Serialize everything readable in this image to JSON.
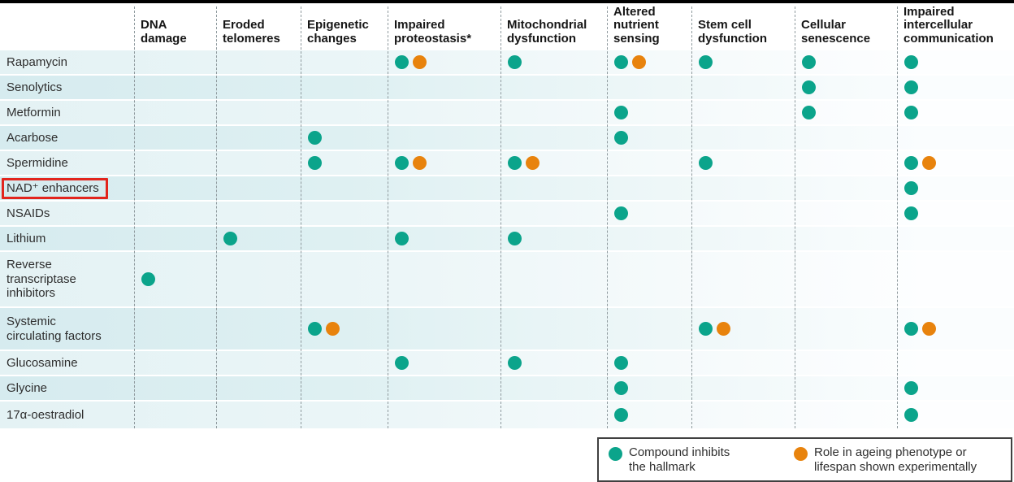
{
  "figure": {
    "colors": {
      "teal": "#0ba48b",
      "orange": "#e8830d",
      "highlight": "#e2251d"
    },
    "legend": {
      "items": [
        {
          "color": "teal",
          "label": "Compound inhibits the hallmark"
        },
        {
          "color": "orange",
          "label": "Role in ageing phenotype or lifespan shown experimentally"
        }
      ]
    }
  },
  "chart_data": {
    "type": "table",
    "columns": [
      "DNA damage",
      "Eroded telomeres",
      "Epigenetic changes",
      "Impaired proteostasis*",
      "Mitochondrial dysfunction",
      "Altered nutrient sensing",
      "Stem cell dysfunction",
      "Cellular senescence",
      "Impaired intercellular communication"
    ],
    "mark_meanings": {
      "teal": "Compound inhibits the hallmark",
      "orange": "Role in ageing phenotype or lifespan shown experimentally"
    },
    "rows": [
      {
        "label": "Rapamycin",
        "highlighted": false,
        "cells": [
          null,
          null,
          null,
          [
            "teal",
            "orange"
          ],
          [
            "teal"
          ],
          [
            "teal",
            "orange"
          ],
          [
            "teal"
          ],
          [
            "teal"
          ],
          [
            "teal"
          ]
        ]
      },
      {
        "label": "Senolytics",
        "highlighted": false,
        "cells": [
          null,
          null,
          null,
          null,
          null,
          null,
          null,
          [
            "teal"
          ],
          [
            "teal"
          ]
        ]
      },
      {
        "label": "Metformin",
        "highlighted": false,
        "cells": [
          null,
          null,
          null,
          null,
          null,
          [
            "teal"
          ],
          null,
          [
            "teal"
          ],
          [
            "teal"
          ]
        ]
      },
      {
        "label": "Acarbose",
        "highlighted": false,
        "cells": [
          null,
          null,
          [
            "teal"
          ],
          null,
          null,
          [
            "teal"
          ],
          null,
          null,
          null
        ]
      },
      {
        "label": "Spermidine",
        "highlighted": false,
        "cells": [
          null,
          null,
          [
            "teal"
          ],
          [
            "teal",
            "orange"
          ],
          [
            "teal",
            "orange"
          ],
          null,
          [
            "teal"
          ],
          null,
          [
            "teal",
            "orange"
          ]
        ]
      },
      {
        "label": "NAD⁺ enhancers",
        "highlighted": true,
        "cells": [
          null,
          null,
          null,
          null,
          null,
          null,
          null,
          null,
          [
            "teal"
          ]
        ]
      },
      {
        "label": "NSAIDs",
        "highlighted": false,
        "cells": [
          null,
          null,
          null,
          null,
          null,
          [
            "teal"
          ],
          null,
          null,
          [
            "teal"
          ]
        ]
      },
      {
        "label": "Lithium",
        "highlighted": false,
        "cells": [
          null,
          [
            "teal"
          ],
          null,
          [
            "teal"
          ],
          [
            "teal"
          ],
          null,
          null,
          null,
          null
        ]
      },
      {
        "label": "Reverse transcriptase inhibitors",
        "highlighted": false,
        "cells": [
          [
            "teal"
          ],
          null,
          null,
          null,
          null,
          null,
          null,
          null,
          null
        ]
      },
      {
        "label": "Systemic circulating factors",
        "highlighted": false,
        "cells": [
          null,
          null,
          [
            "teal",
            "orange"
          ],
          null,
          null,
          null,
          [
            "teal",
            "orange"
          ],
          null,
          [
            "teal",
            "orange"
          ]
        ]
      },
      {
        "label": "Glucosamine",
        "highlighted": false,
        "cells": [
          null,
          null,
          null,
          [
            "teal"
          ],
          [
            "teal"
          ],
          [
            "teal"
          ],
          null,
          null,
          null
        ]
      },
      {
        "label": "Glycine",
        "highlighted": false,
        "cells": [
          null,
          null,
          null,
          null,
          null,
          [
            "teal"
          ],
          null,
          null,
          [
            "teal"
          ]
        ]
      },
      {
        "label": "17α-oestradiol",
        "highlighted": false,
        "cells": [
          null,
          null,
          null,
          null,
          null,
          [
            "teal"
          ],
          null,
          null,
          [
            "teal"
          ]
        ]
      }
    ]
  }
}
